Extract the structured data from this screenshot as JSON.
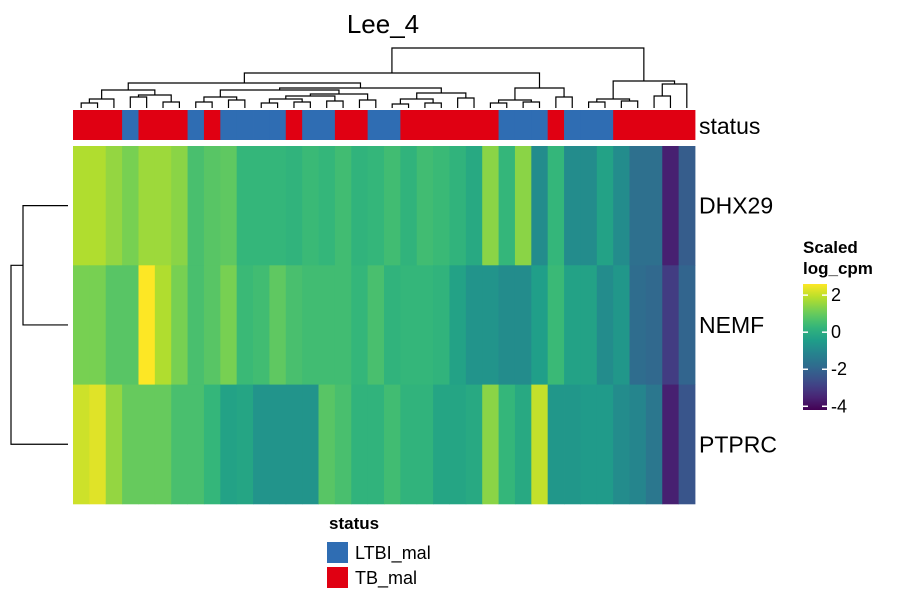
{
  "chart_data": {
    "type": "heatmap",
    "title": "Lee_4",
    "rows": [
      "DHX29",
      "NEMF",
      "PTPRC"
    ],
    "annotation": {
      "label": "status",
      "legend_title": "status",
      "levels": [
        {
          "name": "LTBI_mal",
          "color": "#2f6db3"
        },
        {
          "name": "TB_mal",
          "color": "#e00012"
        }
      ],
      "columns": [
        "TB_mal",
        "TB_mal",
        "TB_mal",
        "LTBI_mal",
        "TB_mal",
        "TB_mal",
        "TB_mal",
        "LTBI_mal",
        "TB_mal",
        "LTBI_mal",
        "LTBI_mal",
        "LTBI_mal",
        "LTBI_mal",
        "TB_mal",
        "LTBI_mal",
        "LTBI_mal",
        "TB_mal",
        "TB_mal",
        "LTBI_mal",
        "LTBI_mal",
        "TB_mal",
        "TB_mal",
        "TB_mal",
        "TB_mal",
        "TB_mal",
        "TB_mal",
        "LTBI_mal",
        "LTBI_mal",
        "LTBI_mal",
        "TB_mal",
        "LTBI_mal",
        "LTBI_mal",
        "LTBI_mal",
        "TB_mal",
        "TB_mal",
        "TB_mal",
        "TB_mal",
        "TB_mal"
      ]
    },
    "values": [
      [
        1.8,
        1.8,
        1.5,
        1.2,
        1.6,
        1.6,
        1.4,
        0.6,
        0.8,
        0.9,
        0.3,
        0.3,
        0.3,
        0.2,
        0.4,
        0.3,
        0.5,
        0.2,
        0.3,
        0.5,
        0.2,
        0.5,
        0.4,
        0.2,
        -0.1,
        1.4,
        0.3,
        1.4,
        -0.9,
        0.3,
        -0.9,
        -0.9,
        -0.3,
        -0.9,
        -1.7,
        -1.7,
        -3.6,
        -2.2
      ],
      [
        1.2,
        1.2,
        0.8,
        0.8,
        2.6,
        1.8,
        1.2,
        0.6,
        0.8,
        1.2,
        0.4,
        0.5,
        0.9,
        0.6,
        0.5,
        0.5,
        0.5,
        0.3,
        0.6,
        0.2,
        0.3,
        0.3,
        0.2,
        -0.3,
        -0.7,
        -0.7,
        -0.9,
        -0.9,
        -0.4,
        0.4,
        -0.3,
        -0.3,
        -0.9,
        -0.6,
        -1.8,
        -1.9,
        -3.0,
        -2.0
      ],
      [
        2.1,
        2.3,
        1.5,
        1.0,
        1.0,
        1.0,
        0.6,
        0.6,
        0.3,
        -0.3,
        -0.2,
        -0.7,
        -0.7,
        -0.7,
        -0.7,
        0.8,
        0.6,
        0.2,
        0.2,
        0.5,
        0.2,
        0.2,
        -0.2,
        -0.2,
        -0.1,
        1.4,
        0.3,
        -0.1,
        2.0,
        -0.6,
        -0.6,
        -0.5,
        -0.5,
        -0.9,
        -1.1,
        -1.5,
        -3.6,
        -2.4
      ]
    ],
    "legend": {
      "title_line1": "Scaled",
      "title_line2": "log_cpm",
      "ticks": [
        2,
        0,
        -2,
        -4
      ],
      "tick_labels": [
        "2",
        "0",
        "-2",
        "-4"
      ],
      "range": [
        -4.2,
        2.6
      ]
    },
    "colormap": "viridis"
  }
}
